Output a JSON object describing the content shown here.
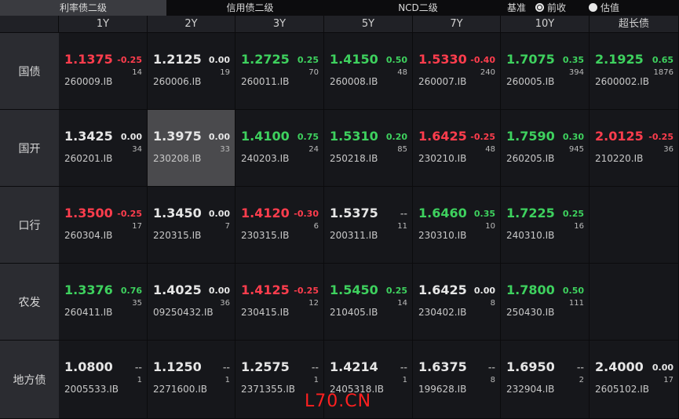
{
  "tabs": [
    {
      "label": "利率债二级",
      "active": true
    },
    {
      "label": "信用债二级",
      "active": false
    },
    {
      "label": "NCD二级",
      "active": false
    }
  ],
  "benchmark": {
    "label": "基准",
    "options": [
      {
        "label": "前收",
        "checked": true
      },
      {
        "label": "估值",
        "checked": false
      }
    ]
  },
  "table": {
    "columns": [
      "1Y",
      "2Y",
      "3Y",
      "5Y",
      "7Y",
      "10Y",
      "超长债"
    ],
    "selected_cell": [
      1,
      1
    ],
    "rows": [
      {
        "label": "国债",
        "cells": [
          {
            "price": "1.1375",
            "color": "#ff3d4d",
            "change": "-0.25",
            "change_color": "#ff3d4d",
            "volume": "14",
            "code": "260009.IB"
          },
          {
            "price": "1.2125",
            "color": "#e6e6e6",
            "change": "0.00",
            "change_color": "#e6e6e6",
            "volume": "19",
            "code": "260006.IB"
          },
          {
            "price": "1.2725",
            "color": "#3ed15e",
            "change": "0.25",
            "change_color": "#3ed15e",
            "volume": "70",
            "code": "260011.IB"
          },
          {
            "price": "1.4150",
            "color": "#3ed15e",
            "change": "0.50",
            "change_color": "#3ed15e",
            "volume": "48",
            "code": "260008.IB"
          },
          {
            "price": "1.5330",
            "color": "#ff3d4d",
            "change": "-0.40",
            "change_color": "#ff3d4d",
            "volume": "240",
            "code": "260007.IB"
          },
          {
            "price": "1.7075",
            "color": "#3ed15e",
            "change": "0.35",
            "change_color": "#3ed15e",
            "volume": "394",
            "code": "260005.IB"
          },
          {
            "price": "2.1925",
            "color": "#3ed15e",
            "change": "0.65",
            "change_color": "#3ed15e",
            "volume": "1876",
            "code": "2600002.IB"
          }
        ]
      },
      {
        "label": "国开",
        "cells": [
          {
            "price": "1.3425",
            "color": "#e6e6e6",
            "change": "0.00",
            "change_color": "#e6e6e6",
            "volume": "34",
            "code": "260201.IB"
          },
          {
            "price": "1.3975",
            "color": "#e6e6e6",
            "change": "0.00",
            "change_color": "#e6e6e6",
            "volume": "33",
            "code": "230208.IB"
          },
          {
            "price": "1.4100",
            "color": "#3ed15e",
            "change": "0.75",
            "change_color": "#3ed15e",
            "volume": "24",
            "code": "240203.IB"
          },
          {
            "price": "1.5310",
            "color": "#3ed15e",
            "change": "0.20",
            "change_color": "#3ed15e",
            "volume": "85",
            "code": "250218.IB"
          },
          {
            "price": "1.6425",
            "color": "#ff3d4d",
            "change": "-0.25",
            "change_color": "#ff3d4d",
            "volume": "48",
            "code": "230210.IB"
          },
          {
            "price": "1.7590",
            "color": "#3ed15e",
            "change": "0.30",
            "change_color": "#3ed15e",
            "volume": "945",
            "code": "260205.IB"
          },
          {
            "price": "2.0125",
            "color": "#ff3d4d",
            "change": "-0.25",
            "change_color": "#ff3d4d",
            "volume": "36",
            "code": "210220.IB"
          }
        ]
      },
      {
        "label": "口行",
        "cells": [
          {
            "price": "1.3500",
            "color": "#ff3d4d",
            "change": "-0.25",
            "change_color": "#ff3d4d",
            "volume": "17",
            "code": "260304.IB"
          },
          {
            "price": "1.3450",
            "color": "#e6e6e6",
            "change": "0.00",
            "change_color": "#e6e6e6",
            "volume": "7",
            "code": "220315.IB"
          },
          {
            "price": "1.4120",
            "color": "#ff3d4d",
            "change": "-0.30",
            "change_color": "#ff3d4d",
            "volume": "6",
            "code": "230315.IB"
          },
          {
            "price": "1.5375",
            "color": "#e6e6e6",
            "change": "--",
            "change_color": "#9a9a9a",
            "volume": "11",
            "code": "200311.IB"
          },
          {
            "price": "1.6460",
            "color": "#3ed15e",
            "change": "0.35",
            "change_color": "#3ed15e",
            "volume": "10",
            "code": "230310.IB"
          },
          {
            "price": "1.7225",
            "color": "#3ed15e",
            "change": "0.25",
            "change_color": "#3ed15e",
            "volume": "16",
            "code": "240310.IB"
          },
          null
        ]
      },
      {
        "label": "农发",
        "cells": [
          {
            "price": "1.3376",
            "color": "#3ed15e",
            "change": "0.76",
            "change_color": "#3ed15e",
            "volume": "35",
            "code": "260411.IB"
          },
          {
            "price": "1.4025",
            "color": "#e6e6e6",
            "change": "0.00",
            "change_color": "#e6e6e6",
            "volume": "36",
            "code": "09250432.IB"
          },
          {
            "price": "1.4125",
            "color": "#ff3d4d",
            "change": "-0.25",
            "change_color": "#ff3d4d",
            "volume": "12",
            "code": "230415.IB"
          },
          {
            "price": "1.5450",
            "color": "#3ed15e",
            "change": "0.25",
            "change_color": "#3ed15e",
            "volume": "14",
            "code": "210405.IB"
          },
          {
            "price": "1.6425",
            "color": "#e6e6e6",
            "change": "0.00",
            "change_color": "#e6e6e6",
            "volume": "8",
            "code": "230402.IB"
          },
          {
            "price": "1.7800",
            "color": "#3ed15e",
            "change": "0.50",
            "change_color": "#3ed15e",
            "volume": "111",
            "code": "250430.IB"
          },
          null
        ]
      },
      {
        "label": "地方债",
        "cells": [
          {
            "price": "1.0800",
            "color": "#e6e6e6",
            "change": "--",
            "change_color": "#9a9a9a",
            "volume": "1",
            "code": "2005533.IB"
          },
          {
            "price": "1.1250",
            "color": "#e6e6e6",
            "change": "--",
            "change_color": "#9a9a9a",
            "volume": "1",
            "code": "2271600.IB"
          },
          {
            "price": "1.2575",
            "color": "#e6e6e6",
            "change": "--",
            "change_color": "#9a9a9a",
            "volume": "1",
            "code": "2371355.IB"
          },
          {
            "price": "1.4214",
            "color": "#e6e6e6",
            "change": "--",
            "change_color": "#9a9a9a",
            "volume": "1",
            "code": "2405318.IB"
          },
          {
            "price": "1.6375",
            "color": "#e6e6e6",
            "change": "--",
            "change_color": "#9a9a9a",
            "volume": "8",
            "code": "199628.IB"
          },
          {
            "price": "1.6950",
            "color": "#e6e6e6",
            "change": "--",
            "change_color": "#9a9a9a",
            "volume": "2",
            "code": "232904.IB"
          },
          {
            "price": "2.4000",
            "color": "#e6e6e6",
            "change": "0.00",
            "change_color": "#e6e6e6",
            "volume": "17",
            "code": "2605102.IB"
          }
        ]
      }
    ]
  },
  "watermark": "L70.CN"
}
